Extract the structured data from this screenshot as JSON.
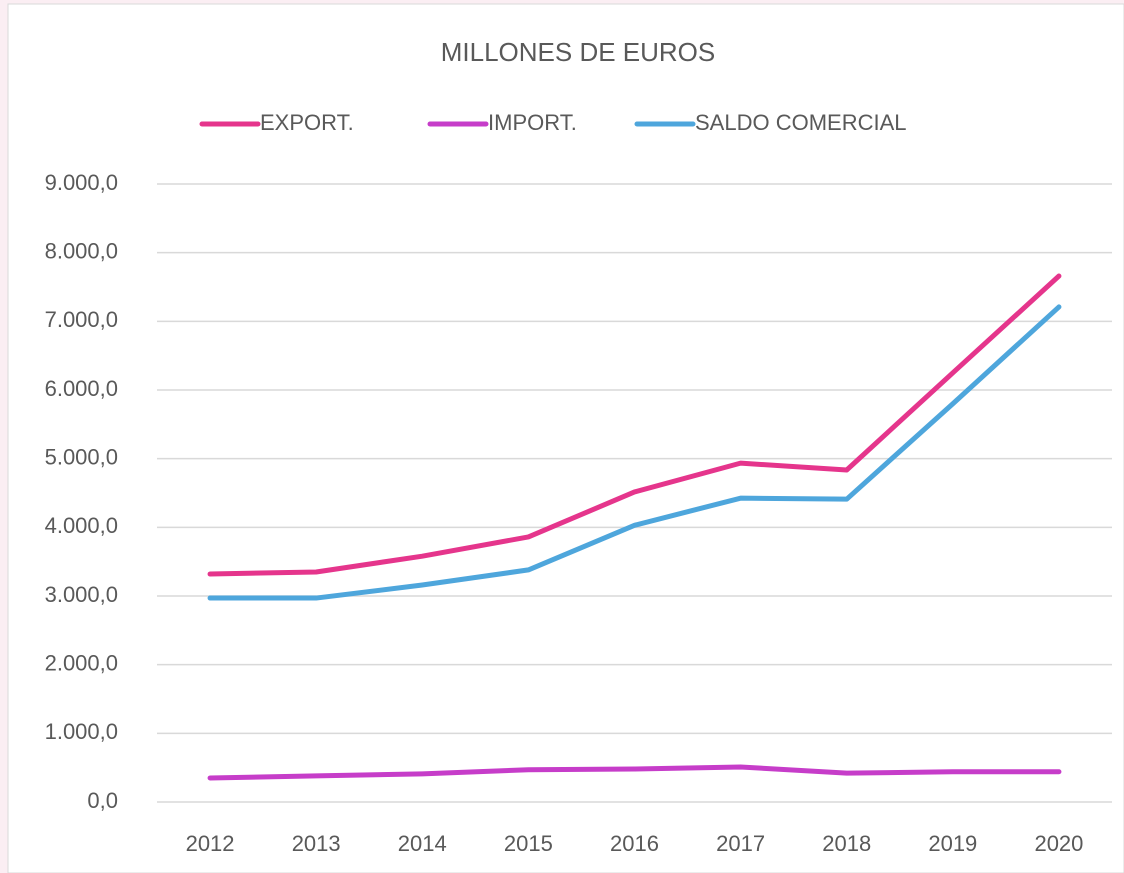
{
  "chart_data": {
    "type": "line",
    "title": "MILLONES DE EUROS",
    "categories": [
      "2012",
      "2013",
      "2014",
      "2015",
      "2016",
      "2017",
      "2018",
      "2019",
      "2020"
    ],
    "series": [
      {
        "name": "EXPORT.",
        "color": "#e5358c",
        "values": [
          3320,
          3350,
          3580,
          3860,
          4515,
          4935,
          4835,
          6250,
          7660
        ]
      },
      {
        "name": "IMPORT.",
        "color": "#c63dc9",
        "values": [
          350,
          380,
          410,
          470,
          480,
          510,
          420,
          440,
          440
        ]
      },
      {
        "name": "SALDO COMERCIAL",
        "color": "#4ea6dc",
        "values": [
          2970,
          2970,
          3160,
          3380,
          4030,
          4425,
          4410,
          5800,
          7210
        ]
      }
    ],
    "ylim": [
      0,
      9000
    ],
    "yticks": [
      {
        "value": 0,
        "label": "0,0"
      },
      {
        "value": 1000,
        "label": "1.000,0"
      },
      {
        "value": 2000,
        "label": "2.000,0"
      },
      {
        "value": 3000,
        "label": "3.000,0"
      },
      {
        "value": 4000,
        "label": "4.000,0"
      },
      {
        "value": 5000,
        "label": "5.000,0"
      },
      {
        "value": 6000,
        "label": "6.000,0"
      },
      {
        "value": 7000,
        "label": "7.000,0"
      },
      {
        "value": 8000,
        "label": "8.000,0"
      },
      {
        "value": 9000,
        "label": "9.000,0"
      }
    ],
    "grid": true
  }
}
